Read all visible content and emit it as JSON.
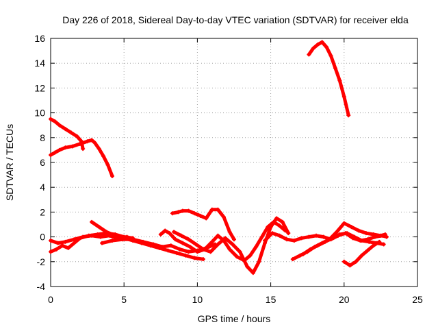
{
  "chart_data": {
    "type": "scatter",
    "title": "Day 226 of 2018, Sidereal Day-to-day VTEC variation (SDTVAR) for receiver elda",
    "xlabel": "GPS time / hours",
    "ylabel": "SDTVAR / TECUs",
    "xlim": [
      0,
      25
    ],
    "ylim": [
      -4,
      16
    ],
    "xticks": [
      0,
      5,
      10,
      15,
      20,
      25
    ],
    "yticks": [
      -4,
      -2,
      0,
      2,
      4,
      6,
      8,
      10,
      12,
      14,
      16
    ],
    "grid": true,
    "color": "#ff0000",
    "marker": "plus",
    "series": [
      {
        "name": "arc1",
        "x": [
          0.0,
          0.3,
          0.6,
          1.0,
          1.4,
          1.8,
          2.1,
          2.2
        ],
        "y": [
          9.5,
          9.3,
          9.0,
          8.7,
          8.4,
          8.1,
          7.7,
          7.1
        ]
      },
      {
        "name": "arc2",
        "x": [
          0.0,
          0.3,
          0.6,
          1.0,
          1.5,
          2.0,
          2.5,
          2.8,
          3.0,
          3.3,
          3.6,
          3.9,
          4.2
        ],
        "y": [
          6.6,
          6.8,
          7.0,
          7.2,
          7.3,
          7.5,
          7.7,
          7.8,
          7.6,
          7.1,
          6.5,
          5.8,
          4.9
        ]
      },
      {
        "name": "arc3",
        "x": [
          17.6,
          17.9,
          18.2,
          18.5,
          18.8,
          19.1,
          19.4,
          19.7,
          20.0,
          20.3
        ],
        "y": [
          14.7,
          15.2,
          15.5,
          15.7,
          15.3,
          14.6,
          13.6,
          12.6,
          11.3,
          9.8
        ]
      },
      {
        "name": "arc4",
        "x": [
          8.3,
          8.7,
          9.0,
          9.4,
          9.8,
          10.2,
          10.6,
          11.0,
          11.4,
          11.8,
          12.2,
          12.5
        ],
        "y": [
          1.9,
          2.0,
          2.1,
          2.1,
          1.9,
          1.7,
          1.5,
          2.2,
          2.2,
          1.6,
          0.4,
          -0.2
        ]
      },
      {
        "name": "arc5",
        "x": [
          0.0,
          0.5,
          1.0,
          1.6,
          2.2,
          2.8,
          3.4,
          4.0,
          4.6,
          5.2,
          5.8,
          6.4,
          7.0
        ],
        "y": [
          -0.3,
          -0.5,
          -0.4,
          -0.2,
          0.0,
          0.1,
          0.0,
          0.1,
          -0.1,
          0.0,
          -0.3,
          -0.5,
          -0.6
        ]
      },
      {
        "name": "arc6",
        "x": [
          0.0,
          0.4,
          0.8,
          1.2,
          1.6,
          2.0,
          2.6,
          3.2,
          3.8,
          4.4,
          5.0,
          5.6
        ],
        "y": [
          -1.2,
          -1.0,
          -0.7,
          -0.9,
          -0.5,
          -0.1,
          0.1,
          0.2,
          0.3,
          0.2,
          0.0,
          -0.1
        ]
      },
      {
        "name": "arc7",
        "x": [
          2.8,
          3.3,
          3.8,
          4.4,
          5.0,
          5.6,
          6.2,
          6.8,
          7.4,
          8.0,
          8.6,
          9.2,
          9.8,
          10.4
        ],
        "y": [
          1.2,
          0.8,
          0.4,
          0.1,
          -0.1,
          -0.3,
          -0.5,
          -0.7,
          -0.9,
          -1.1,
          -1.3,
          -1.5,
          -1.7,
          -1.8
        ]
      },
      {
        "name": "arc8",
        "x": [
          3.5,
          4.2,
          4.9,
          5.6,
          6.3,
          7.0,
          7.6,
          8.2,
          8.8,
          9.4,
          10.0,
          10.6,
          11.2
        ],
        "y": [
          -0.5,
          -0.3,
          -0.2,
          -0.2,
          -0.4,
          -0.6,
          -0.8,
          -0.7,
          -1.0,
          -1.2,
          -1.1,
          -0.9,
          -0.6
        ]
      },
      {
        "name": "arc9",
        "x": [
          7.5,
          7.8,
          8.1,
          8.5,
          9.0,
          9.5,
          10.0,
          10.5,
          11.0,
          11.4,
          11.8,
          12.2,
          12.7,
          13.2,
          13.6,
          14.0,
          14.4,
          14.8,
          15.2,
          15.6,
          16.0
        ],
        "y": [
          0.2,
          0.5,
          0.3,
          -0.2,
          -0.5,
          -0.8,
          -1.2,
          -1.0,
          -0.4,
          0.1,
          -0.3,
          -1.0,
          -1.6,
          -1.9,
          -1.5,
          -0.8,
          0.0,
          0.8,
          1.2,
          0.9,
          0.5
        ]
      },
      {
        "name": "arc10",
        "x": [
          8.4,
          8.9,
          9.4,
          9.9,
          10.4,
          10.9,
          11.4,
          11.9,
          12.4,
          12.9,
          13.4,
          13.8,
          14.2,
          14.6,
          15.0,
          15.4,
          15.8,
          16.2
        ],
        "y": [
          0.4,
          0.1,
          -0.2,
          -0.6,
          -1.0,
          -1.2,
          -0.6,
          -0.1,
          -0.6,
          -1.2,
          -2.4,
          -2.9,
          -2.0,
          -0.5,
          0.8,
          1.5,
          1.2,
          0.3
        ]
      },
      {
        "name": "arc11",
        "x": [
          16.5,
          17.0,
          17.5,
          18.0,
          18.5,
          19.0,
          19.5,
          20.0,
          20.5,
          21.0,
          21.5,
          22.0,
          22.5,
          22.8
        ],
        "y": [
          -1.8,
          -1.5,
          -1.2,
          -0.8,
          -0.5,
          -0.2,
          0.4,
          1.1,
          0.8,
          0.5,
          0.3,
          0.2,
          0.1,
          0.2
        ]
      },
      {
        "name": "arc12",
        "x": [
          14.6,
          15.1,
          15.6,
          16.1,
          16.6,
          17.1,
          17.6,
          18.1,
          18.6,
          19.1,
          19.6,
          20.1,
          20.6,
          21.1,
          21.6,
          22.1,
          22.6,
          22.9
        ],
        "y": [
          -0.3,
          0.3,
          0.1,
          -0.2,
          -0.3,
          -0.1,
          0.0,
          0.1,
          0.0,
          -0.2,
          0.1,
          0.3,
          -0.1,
          -0.3,
          -0.2,
          0.0,
          0.1,
          0.0
        ]
      },
      {
        "name": "arc13",
        "x": [
          17.2,
          17.7,
          18.2,
          18.7,
          19.2,
          19.7,
          20.2,
          20.7,
          21.2,
          21.7,
          22.2,
          22.7
        ],
        "y": [
          -1.4,
          -1.0,
          -0.7,
          -0.4,
          -0.1,
          0.2,
          0.3,
          0.0,
          -0.3,
          -0.4,
          -0.5,
          -0.6
        ]
      },
      {
        "name": "arc14",
        "x": [
          20.0,
          20.4,
          20.8,
          21.2,
          21.6,
          22.0,
          22.4
        ],
        "y": [
          -2.0,
          -2.3,
          -2.0,
          -1.5,
          -1.1,
          -0.7,
          -0.4
        ]
      }
    ]
  }
}
